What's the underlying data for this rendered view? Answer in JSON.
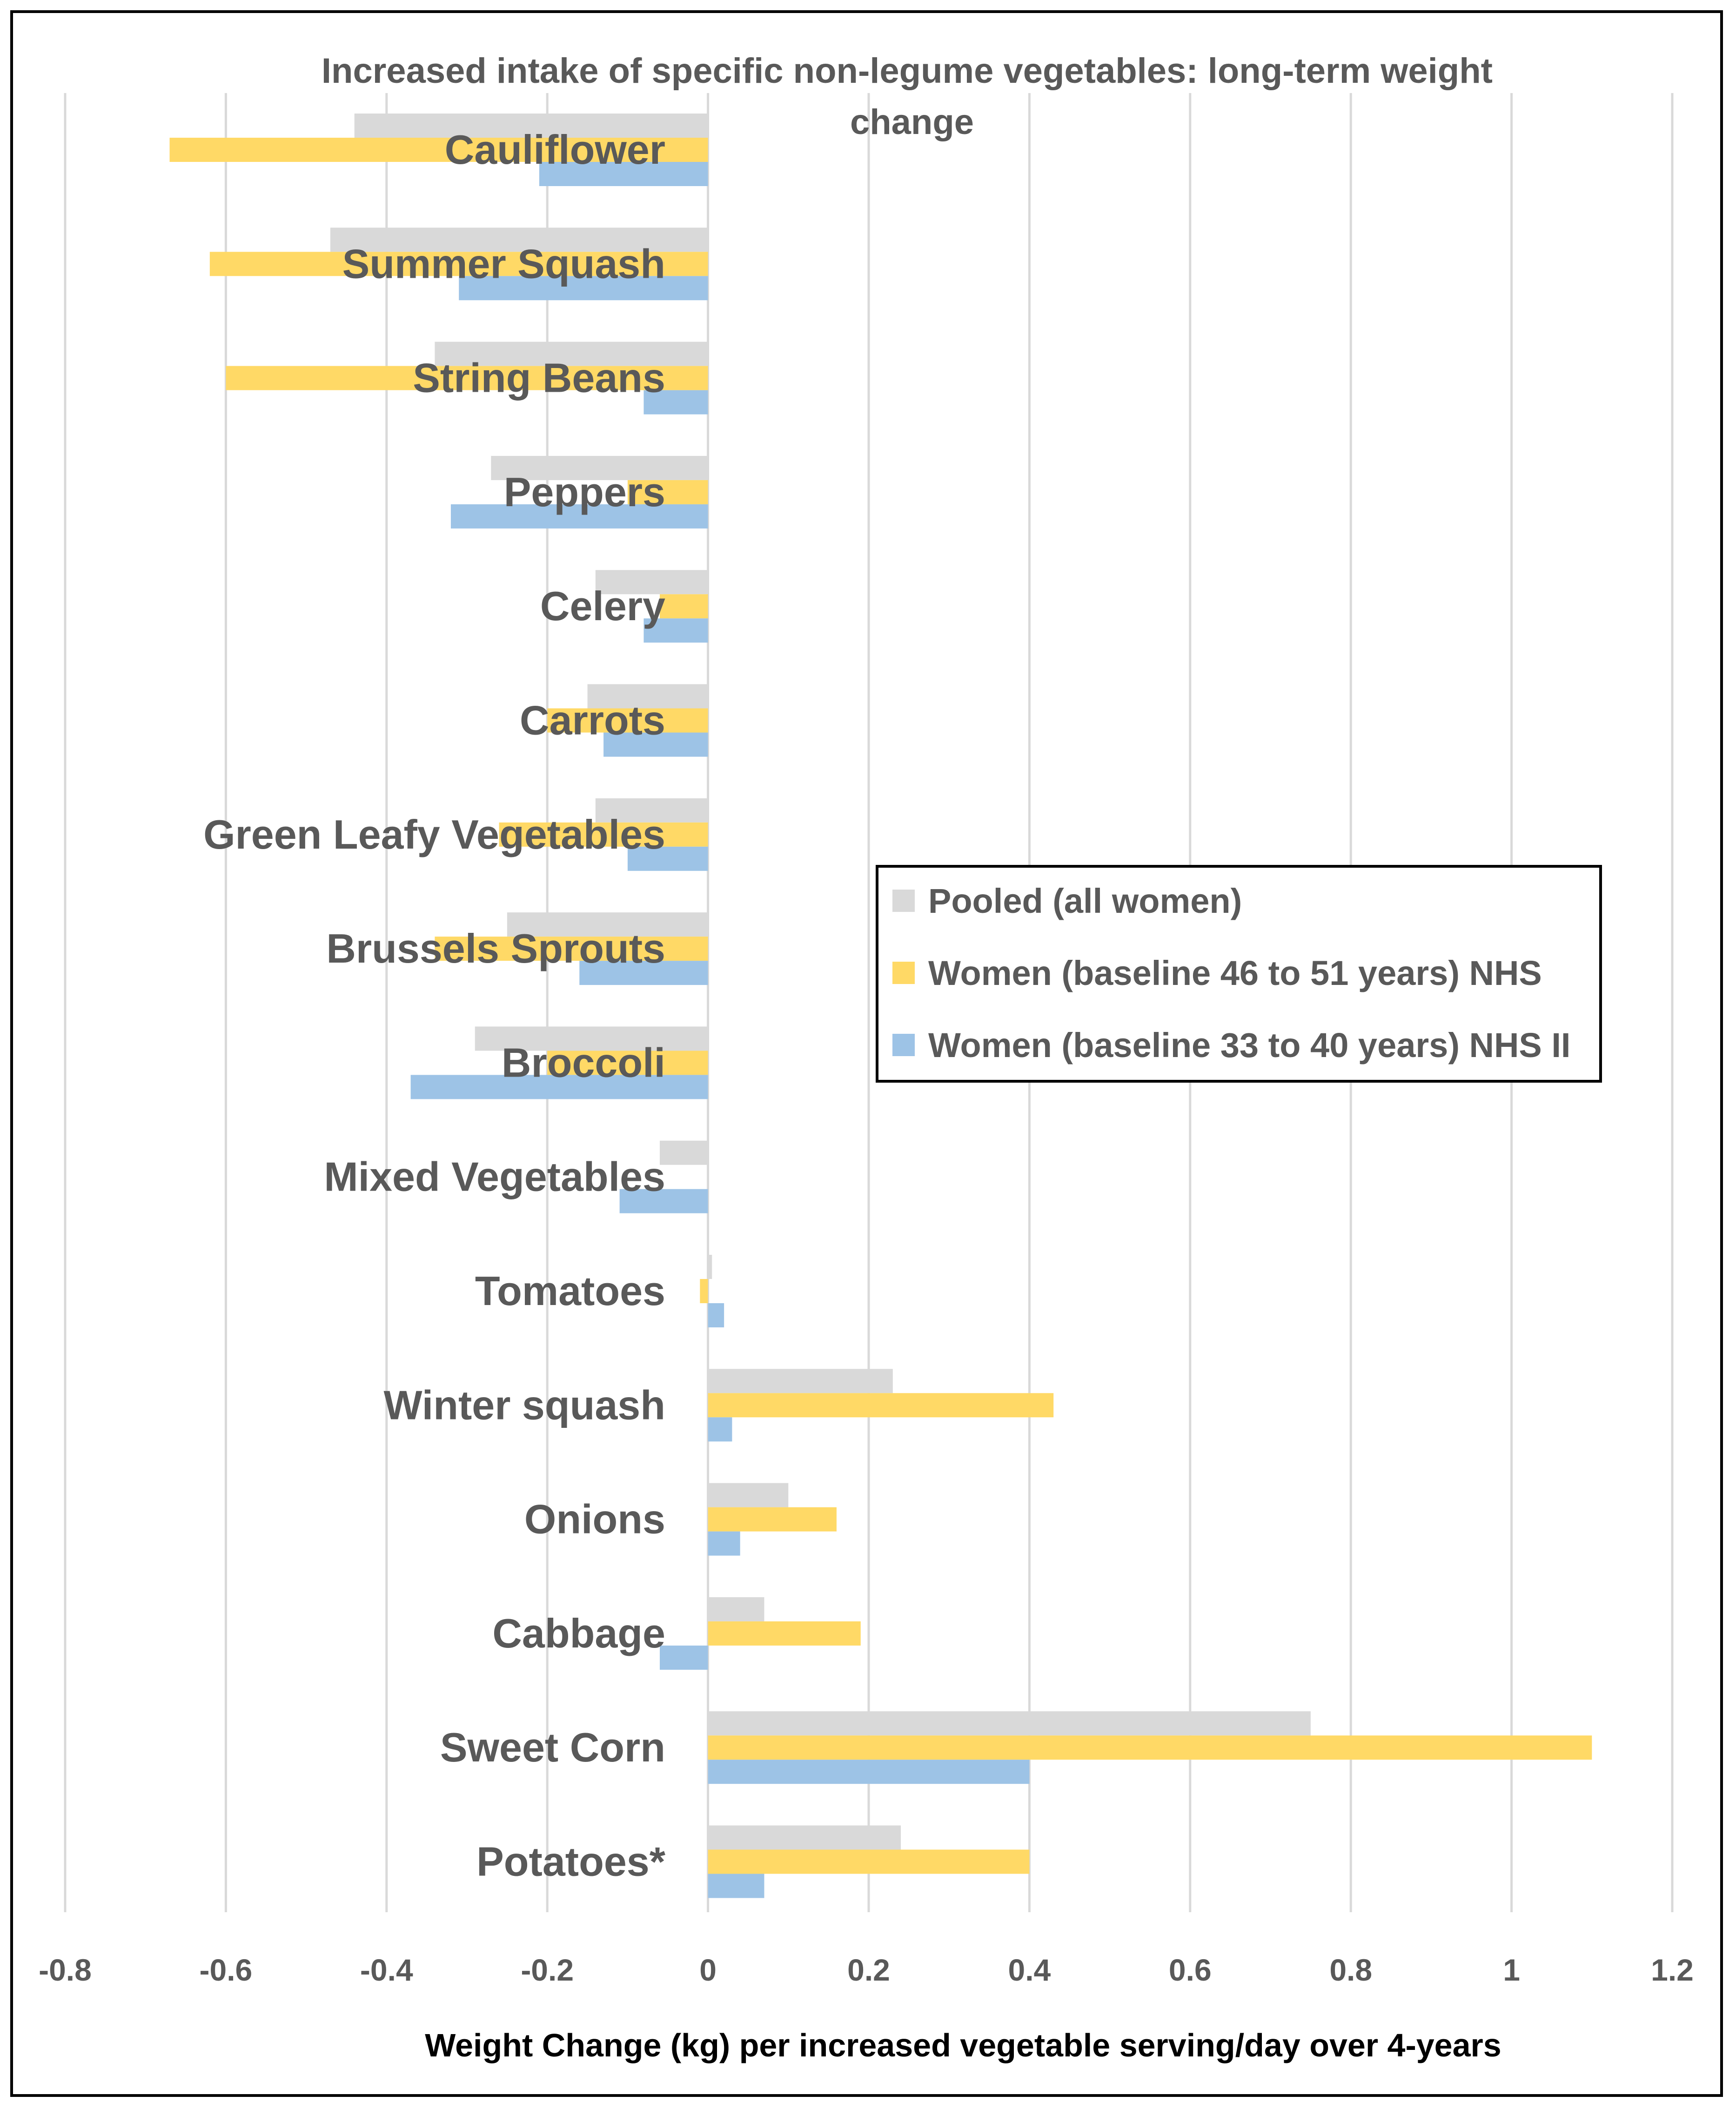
{
  "chart_data": {
    "type": "bar",
    "orientation": "horizontal",
    "title": "Increased intake of specific non-legume vegetables: long-term weight change",
    "xlabel": "Weight Change (kg) per increased vegetable serving/day over 4-years",
    "ylabel": "",
    "xlim": [
      -0.8,
      1.2
    ],
    "xticks": [
      -0.8,
      -0.6,
      -0.4,
      -0.2,
      0,
      0.2,
      0.4,
      0.6,
      0.8,
      1,
      1.2
    ],
    "xtick_labels": [
      "-0.8",
      "-0.6",
      "-0.4",
      "-0.2",
      "0",
      "0.2",
      "0.4",
      "0.6",
      "0.8",
      "1",
      "1.2"
    ],
    "grid": "vertical",
    "legend_position": "right-middle",
    "categories": [
      "Cauliflower",
      "Summer Squash",
      "String Beans",
      "Peppers",
      "Celery",
      "Carrots",
      "Green Leafy Vegetables",
      "Brussels Sprouts",
      "Broccoli",
      "Mixed Vegetables",
      "Tomatoes",
      "Winter squash",
      "Onions",
      "Cabbage",
      "Sweet Corn",
      "Potatoes*"
    ],
    "series": [
      {
        "name": "Pooled (all women)",
        "color": "#d9d9d9",
        "values": [
          -0.44,
          -0.47,
          -0.34,
          -0.27,
          -0.14,
          -0.15,
          -0.14,
          -0.25,
          -0.29,
          -0.06,
          0.005,
          0.23,
          0.1,
          0.07,
          0.75,
          0.24
        ]
      },
      {
        "name": "Women (baseline 46 to 51 years) NHS",
        "color": "#ffd966",
        "values": [
          -0.67,
          -0.62,
          -0.6,
          -0.1,
          -0.06,
          -0.2,
          -0.26,
          -0.34,
          -0.2,
          0,
          -0.01,
          0.43,
          0.16,
          0.19,
          1.1,
          0.4
        ]
      },
      {
        "name": "Women (baseline 33 to 40 years) NHS II",
        "color": "#9dc3e6",
        "values": [
          -0.21,
          -0.31,
          -0.08,
          -0.32,
          -0.08,
          -0.13,
          -0.1,
          -0.16,
          -0.37,
          -0.11,
          0.02,
          0.03,
          0.04,
          -0.06,
          0.4,
          0.07
        ]
      }
    ]
  }
}
